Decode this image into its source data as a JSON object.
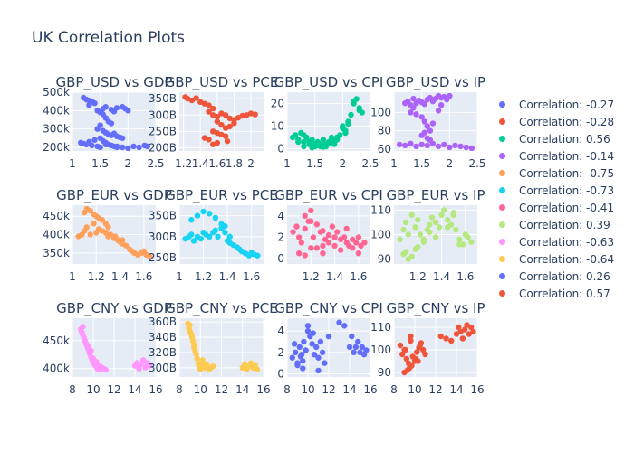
{
  "title": "UK Correlation Plots",
  "legend": [
    {
      "label": "Correlation: -0.27",
      "color": "#636efa"
    },
    {
      "label": "Correlation: -0.28",
      "color": "#EF553B"
    },
    {
      "label": "Correlation: 0.56",
      "color": "#00cc96"
    },
    {
      "label": "Correlation: -0.14",
      "color": "#ab63fa"
    },
    {
      "label": "Correlation: -0.75",
      "color": "#FFA15A"
    },
    {
      "label": "Correlation: -0.73",
      "color": "#19d3f3"
    },
    {
      "label": "Correlation: -0.41",
      "color": "#FF6692"
    },
    {
      "label": "Correlation: 0.39",
      "color": "#B6E880"
    },
    {
      "label": "Correlation: -0.63",
      "color": "#FF97FF"
    },
    {
      "label": "Correlation: -0.64",
      "color": "#FECB52"
    },
    {
      "label": "Correlation: 0.26",
      "color": "#636efa"
    },
    {
      "label": "Correlation: 0.57",
      "color": "#EF553B"
    }
  ],
  "chart_data": [
    {
      "type": "scatter",
      "title": "GBP_USD vs GDP",
      "color": "#636efa",
      "xlim": [
        1,
        2.5
      ],
      "ylim": [
        180000,
        500000
      ],
      "xticks": [
        1,
        1.5,
        2,
        2.5
      ],
      "xtick_labels": [
        "1",
        "1.5",
        "2",
        "2.5"
      ],
      "yticks": [
        200000,
        300000,
        400000,
        500000
      ],
      "ytick_labels": [
        "200k",
        "300k",
        "400k",
        "500k"
      ],
      "x": [
        1.2,
        1.25,
        1.3,
        1.35,
        1.4,
        1.3,
        1.45,
        1.5,
        1.55,
        1.6,
        1.55,
        1.7,
        1.75,
        1.8,
        1.9,
        1.95,
        2.0,
        1.6,
        1.65,
        1.7,
        1.5,
        1.45,
        1.55,
        1.6,
        1.65,
        1.7,
        1.75,
        1.8,
        1.85,
        1.9,
        1.3,
        1.4,
        1.5,
        1.55,
        1.6,
        1.65,
        1.7,
        1.75,
        1.8,
        1.15,
        1.2,
        1.25,
        1.35,
        1.45,
        1.5,
        1.6,
        1.7,
        1.8,
        1.9,
        2.0,
        2.1,
        2.2,
        2.3,
        2.35
      ],
      "y": [
        470000,
        460000,
        455000,
        450000,
        440000,
        430000,
        400000,
        390000,
        380000,
        420000,
        410000,
        405000,
        395000,
        415000,
        420000,
        410000,
        400000,
        360000,
        340000,
        330000,
        320000,
        300000,
        290000,
        280000,
        270000,
        265000,
        275000,
        260000,
        255000,
        250000,
        230000,
        240000,
        250000,
        235000,
        225000,
        215000,
        210000,
        205000,
        200000,
        225000,
        220000,
        215000,
        210000,
        205000,
        200000,
        215000,
        210000,
        205000,
        200000,
        195000,
        205000,
        200000,
        210000,
        205000
      ]
    },
    {
      "type": "scatter",
      "title": "GBP_USD vs PCE",
      "color": "#EF553B",
      "xlim": [
        1.15,
        2.15
      ],
      "ylim": [
        190,
        370
      ],
      "xticks": [
        1.2,
        1.4,
        1.6,
        1.8,
        2
      ],
      "xtick_labels": [
        "1.2",
        "1.4",
        "1.6",
        "1.8",
        "2"
      ],
      "yticks": [
        200,
        250,
        300,
        350
      ],
      "ytick_labels": [
        "200B",
        "250B",
        "300B",
        "350B"
      ],
      "x": [
        1.22,
        1.25,
        1.3,
        1.35,
        1.4,
        1.45,
        1.5,
        1.55,
        1.5,
        1.55,
        1.6,
        1.65,
        1.7,
        1.75,
        1.8,
        1.85,
        1.9,
        1.95,
        2.0,
        2.05,
        1.6,
        1.65,
        1.7,
        1.55,
        1.6,
        1.65,
        1.7,
        1.72,
        1.6,
        1.55,
        1.5,
        1.45,
        1.75,
        1.8
      ],
      "y": [
        355,
        350,
        345,
        352,
        340,
        335,
        330,
        320,
        310,
        300,
        295,
        305,
        300,
        290,
        285,
        292,
        298,
        300,
        305,
        302,
        280,
        270,
        260,
        250,
        245,
        240,
        235,
        220,
        215,
        210,
        225,
        230,
        265,
        275
      ]
    },
    {
      "type": "scatter",
      "title": "GBP_USD vs CPI",
      "color": "#00cc96",
      "xlim": [
        1,
        2.5
      ],
      "ylim": [
        -1,
        25
      ],
      "xticks": [
        1,
        1.5,
        2,
        2.5
      ],
      "xtick_labels": [
        "1",
        "1.5",
        "2",
        "2.5"
      ],
      "yticks": [
        0,
        10,
        20
      ],
      "ytick_labels": [
        "0",
        "10",
        "20"
      ],
      "x": [
        1.1,
        1.15,
        1.2,
        1.25,
        1.3,
        1.35,
        1.4,
        1.45,
        1.5,
        1.55,
        1.6,
        1.65,
        1.7,
        1.75,
        1.8,
        1.85,
        1.9,
        1.95,
        2.0,
        2.05,
        2.1,
        2.15,
        2.2,
        2.25,
        2.3,
        2.35,
        1.3,
        1.4,
        1.5,
        1.6,
        1.7,
        1.8,
        1.9,
        2.0,
        1.2,
        1.3,
        1.45,
        1.55,
        1.65,
        1.75,
        1.85,
        2.2,
        2.3,
        2.1,
        2.05
      ],
      "y": [
        5,
        6,
        4,
        7,
        3,
        5,
        2,
        4,
        1,
        3,
        2,
        4,
        1,
        3,
        5,
        2,
        4,
        6,
        10,
        8,
        12,
        15,
        20,
        22,
        18,
        16,
        6,
        3,
        2,
        1,
        2,
        4,
        5,
        9,
        3,
        1,
        0.5,
        1.5,
        0.8,
        2.5,
        3,
        21,
        17,
        11,
        7
      ]
    },
    {
      "type": "scatter",
      "title": "GBP_USD vs IP",
      "color": "#ab63fa",
      "xlim": [
        1,
        2.5
      ],
      "ylim": [
        58,
        122
      ],
      "xticks": [
        1,
        1.5,
        2,
        2.5
      ],
      "xtick_labels": [
        "1",
        "1.5",
        "2",
        "2.5"
      ],
      "yticks": [
        60,
        80,
        100
      ],
      "ytick_labels": [
        "60",
        "80",
        "100"
      ],
      "x": [
        1.2,
        1.25,
        1.3,
        1.35,
        1.4,
        1.45,
        1.5,
        1.55,
        1.6,
        1.65,
        1.7,
        1.75,
        1.8,
        1.85,
        1.9,
        1.95,
        2.0,
        1.5,
        1.55,
        1.6,
        1.65,
        1.7,
        1.5,
        1.55,
        1.6,
        1.65,
        1.1,
        1.2,
        1.3,
        1.4,
        1.5,
        1.6,
        1.7,
        1.8,
        1.9,
        2.0,
        2.1,
        2.2,
        2.3,
        2.4,
        1.3,
        1.35,
        1.4,
        1.8,
        1.85
      ],
      "y": [
        110,
        112,
        108,
        115,
        110,
        113,
        111,
        109,
        114,
        116,
        112,
        115,
        118,
        116,
        117,
        114,
        118,
        95,
        90,
        85,
        80,
        88,
        75,
        78,
        72,
        70,
        65,
        64,
        66,
        63,
        65,
        64,
        66,
        63,
        65,
        62,
        64,
        63,
        62,
        61,
        100,
        105,
        98,
        102,
        108
      ]
    },
    {
      "type": "scatter",
      "title": "GBP_EUR vs GDP",
      "color": "#FFA15A",
      "xlim": [
        1,
        1.7
      ],
      "ylim": [
        320000,
        480000
      ],
      "xticks": [
        1,
        1.2,
        1.4,
        1.6
      ],
      "xtick_labels": [
        "1",
        "1.2",
        "1.4",
        "1.6"
      ],
      "yticks": [
        350000,
        400000,
        450000
      ],
      "ytick_labels": [
        "350k",
        "400k",
        "450k"
      ],
      "x": [
        1.05,
        1.08,
        1.1,
        1.12,
        1.15,
        1.18,
        1.2,
        1.22,
        1.25,
        1.28,
        1.3,
        1.15,
        1.2,
        1.25,
        1.3,
        1.35,
        1.38,
        1.4,
        1.42,
        1.45,
        1.48,
        1.5,
        1.52,
        1.55,
        1.58,
        1.6,
        1.62,
        1.65,
        1.1,
        1.12,
        1.18,
        1.22,
        1.28,
        1.32,
        1.36,
        1.42
      ],
      "y": [
        395000,
        400000,
        410000,
        470000,
        465000,
        455000,
        450000,
        445000,
        440000,
        430000,
        420000,
        400000,
        405000,
        410000,
        395000,
        390000,
        385000,
        380000,
        375000,
        370000,
        360000,
        355000,
        350000,
        345000,
        350000,
        355000,
        345000,
        340000,
        460000,
        420000,
        430000,
        415000,
        405000,
        400000,
        395000,
        385000
      ]
    },
    {
      "type": "scatter",
      "title": "GBP_EUR vs PCE",
      "color": "#19d3f3",
      "xlim": [
        1,
        1.7
      ],
      "ylim": [
        235,
        375
      ],
      "xticks": [
        1,
        1.2,
        1.4,
        1.6
      ],
      "xtick_labels": [
        "1",
        "1.2",
        "1.4",
        "1.6"
      ],
      "yticks": [
        250,
        300,
        350
      ],
      "ytick_labels": [
        "250B",
        "300B",
        "350B"
      ],
      "x": [
        1.05,
        1.08,
        1.1,
        1.12,
        1.15,
        1.18,
        1.2,
        1.22,
        1.25,
        1.28,
        1.3,
        1.32,
        1.35,
        1.38,
        1.4,
        1.42,
        1.45,
        1.48,
        1.5,
        1.52,
        1.55,
        1.58,
        1.6,
        1.62,
        1.65,
        1.1,
        1.15,
        1.2,
        1.25,
        1.3,
        1.35,
        1.38,
        1.42
      ],
      "y": [
        295,
        300,
        305,
        290,
        300,
        295,
        310,
        305,
        300,
        310,
        315,
        300,
        330,
        325,
        290,
        285,
        280,
        275,
        270,
        265,
        260,
        255,
        262,
        258,
        255,
        340,
        350,
        360,
        355,
        345,
        320,
        310,
        300
      ]
    },
    {
      "type": "scatter",
      "title": "GBP_EUR vs CPI",
      "color": "#FF6692",
      "xlim": [
        1,
        1.7
      ],
      "ylim": [
        -0.5,
        5
      ],
      "xticks": [
        1.2,
        1.4,
        1.6
      ],
      "xtick_labels": [
        "1.2",
        "1.4",
        "1.6"
      ],
      "yticks": [
        0,
        2,
        4
      ],
      "ytick_labels": [
        "0",
        "2",
        "4"
      ],
      "x": [
        1.05,
        1.08,
        1.1,
        1.12,
        1.15,
        1.18,
        1.2,
        1.22,
        1.25,
        1.28,
        1.3,
        1.32,
        1.35,
        1.38,
        1.4,
        1.42,
        1.45,
        1.48,
        1.5,
        1.52,
        1.55,
        1.58,
        1.6,
        1.62,
        1.65,
        1.1,
        1.15,
        1.2,
        1.25,
        1.3,
        1.35,
        1.45,
        1.5,
        1.55,
        1.6,
        1.15,
        1.2,
        1.3,
        1.4
      ],
      "y": [
        2.5,
        3,
        2,
        1.5,
        2.8,
        3.5,
        4.5,
        2,
        1,
        2.5,
        0.5,
        1.8,
        2.2,
        3,
        1.2,
        2.5,
        1.8,
        2,
        1.5,
        1.2,
        1,
        1.5,
        2,
        1.2,
        1.5,
        0.5,
        0.3,
        1,
        3.2,
        2.6,
        1.5,
        0.8,
        2.8,
        1.8,
        0.5,
        4,
        3.5,
        1.2,
        2
      ]
    },
    {
      "type": "scatter",
      "title": "GBP_EUR vs IP",
      "color": "#B6E880",
      "xlim": [
        1,
        1.7
      ],
      "ylim": [
        88,
        112
      ],
      "xticks": [
        1.2,
        1.4,
        1.6
      ],
      "xtick_labels": [
        "1.2",
        "1.4",
        "1.6"
      ],
      "yticks": [
        90,
        100,
        110
      ],
      "ytick_labels": [
        "90",
        "100",
        "110"
      ],
      "x": [
        1.05,
        1.08,
        1.1,
        1.12,
        1.15,
        1.18,
        1.2,
        1.22,
        1.25,
        1.28,
        1.3,
        1.32,
        1.35,
        1.38,
        1.4,
        1.42,
        1.45,
        1.48,
        1.5,
        1.52,
        1.55,
        1.58,
        1.6,
        1.62,
        1.65,
        1.1,
        1.15,
        1.2,
        1.25,
        1.3,
        1.35,
        1.45,
        1.5,
        1.55,
        1.08,
        1.12,
        1.18
      ],
      "y": [
        98,
        102,
        105,
        100,
        108,
        103,
        106,
        100,
        98,
        102,
        104,
        107,
        105,
        103,
        108,
        110,
        106,
        104,
        108,
        102,
        98,
        96,
        100,
        99,
        97,
        93,
        91,
        95,
        97,
        101,
        99,
        103,
        109,
        96,
        92,
        90,
        94
      ]
    },
    {
      "type": "scatter",
      "title": "GBP_CNY vs GDP",
      "color": "#FF97FF",
      "xlim": [
        8,
        16
      ],
      "ylim": [
        385000,
        490000
      ],
      "xticks": [
        8,
        10,
        12,
        14,
        16
      ],
      "xtick_labels": [
        "8",
        "10",
        "12",
        "14",
        "16"
      ],
      "yticks": [
        400000,
        450000
      ],
      "ytick_labels": [
        "400k",
        "450k"
      ],
      "x": [
        8.8,
        8.9,
        9.0,
        9.1,
        9.2,
        9.3,
        9.4,
        9.5,
        9.6,
        9.7,
        9.8,
        9.9,
        10.0,
        10.2,
        10.4,
        10.6,
        10.8,
        11.0,
        11.2,
        14.0,
        14.2,
        14.4,
        14.6,
        14.8,
        15.0,
        15.2,
        15.4,
        9.0,
        9.2,
        9.5,
        9.8,
        10.0,
        10.3,
        10.6
      ],
      "y": [
        470000,
        465000,
        460000,
        455000,
        450000,
        445000,
        440000,
        435000,
        430000,
        425000,
        420000,
        415000,
        410000,
        405000,
        400000,
        398000,
        402000,
        400000,
        398000,
        405000,
        410000,
        400000,
        408000,
        415000,
        402000,
        410000,
        405000,
        475000,
        450000,
        440000,
        432000,
        418000,
        412000,
        405000
      ]
    },
    {
      "type": "scatter",
      "title": "GBP_CNY vs PCE",
      "color": "#FECB52",
      "xlim": [
        8,
        16
      ],
      "ylim": [
        288,
        365
      ],
      "xticks": [
        8,
        10,
        12,
        14,
        16
      ],
      "xtick_labels": [
        "8",
        "10",
        "12",
        "14",
        "16"
      ],
      "yticks": [
        300,
        320,
        340,
        360
      ],
      "ytick_labels": [
        "300B",
        "320B",
        "340B",
        "360B"
      ],
      "x": [
        8.8,
        8.9,
        9.0,
        9.1,
        9.2,
        9.3,
        9.4,
        9.5,
        9.6,
        9.7,
        9.8,
        9.9,
        10.0,
        10.2,
        10.4,
        10.6,
        10.8,
        11.0,
        11.2,
        14.0,
        14.2,
        14.4,
        14.6,
        14.8,
        15.0,
        15.2,
        15.4,
        9.0,
        9.2,
        9.4,
        10.2
      ],
      "y": [
        358,
        352,
        348,
        345,
        340,
        335,
        330,
        322,
        318,
        312,
        305,
        300,
        298,
        302,
        300,
        305,
        298,
        300,
        302,
        300,
        305,
        298,
        302,
        306,
        300,
        304,
        298,
        356,
        342,
        326,
        310
      ]
    },
    {
      "type": "scatter",
      "title": "GBP_CNY vs CPI",
      "color": "#636efa",
      "xlim": [
        8,
        16
      ],
      "ylim": [
        -0.3,
        5.2
      ],
      "xticks": [
        8,
        10,
        12,
        14,
        16
      ],
      "xtick_labels": [
        "8",
        "10",
        "12",
        "14",
        "16"
      ],
      "yticks": [
        0,
        2,
        4
      ],
      "ytick_labels": [
        "0",
        "2",
        "4"
      ],
      "x": [
        8.5,
        8.8,
        9.0,
        9.2,
        9.4,
        9.5,
        9.6,
        9.8,
        10.0,
        10.2,
        10.4,
        10.6,
        10.8,
        11.0,
        11.2,
        11.4,
        11.6,
        12.0,
        13.0,
        13.5,
        14.0,
        14.2,
        14.4,
        14.6,
        14.8,
        15.0,
        15.2,
        15.4,
        15.6,
        9.0,
        9.5,
        10.0,
        10.5,
        11.0,
        8.7,
        9.3
      ],
      "y": [
        1.5,
        2,
        1,
        2.5,
        1.8,
        0.5,
        3,
        2.2,
        4.5,
        3.5,
        2.8,
        1.8,
        2.5,
        1.5,
        3,
        2,
        1,
        3.5,
        4.8,
        4.5,
        2.5,
        3.5,
        2,
        2.5,
        3,
        2,
        2.5,
        1.8,
        2.2,
        0.8,
        1.2,
        4,
        3.8,
        0.3,
        2.8,
        1.6
      ]
    },
    {
      "type": "scatter",
      "title": "GBP_CNY vs IP",
      "color": "#EF553B",
      "xlim": [
        8,
        16
      ],
      "ylim": [
        88,
        114
      ],
      "xticks": [
        8,
        10,
        12,
        14,
        16
      ],
      "xtick_labels": [
        "8",
        "10",
        "12",
        "14",
        "16"
      ],
      "yticks": [
        90,
        100,
        110
      ],
      "ytick_labels": [
        "90",
        "100",
        "110"
      ],
      "x": [
        8.6,
        8.8,
        9.0,
        9.2,
        9.4,
        9.5,
        9.6,
        9.8,
        10.0,
        10.2,
        10.4,
        10.6,
        10.8,
        11.0,
        12.5,
        13.0,
        13.5,
        14.0,
        14.2,
        14.4,
        14.6,
        14.8,
        15.0,
        15.2,
        15.4,
        15.6,
        9.0,
        9.3,
        9.7,
        10.1,
        10.5,
        9.1,
        9.6,
        10.3
      ],
      "y": [
        102,
        98,
        100,
        96,
        94,
        92,
        104,
        97,
        95,
        99,
        101,
        103,
        100,
        98,
        106,
        105,
        104,
        107,
        110,
        108,
        105,
        109,
        111,
        107,
        110,
        108,
        90,
        91,
        93,
        96,
        102,
        100,
        106,
        95
      ]
    }
  ]
}
